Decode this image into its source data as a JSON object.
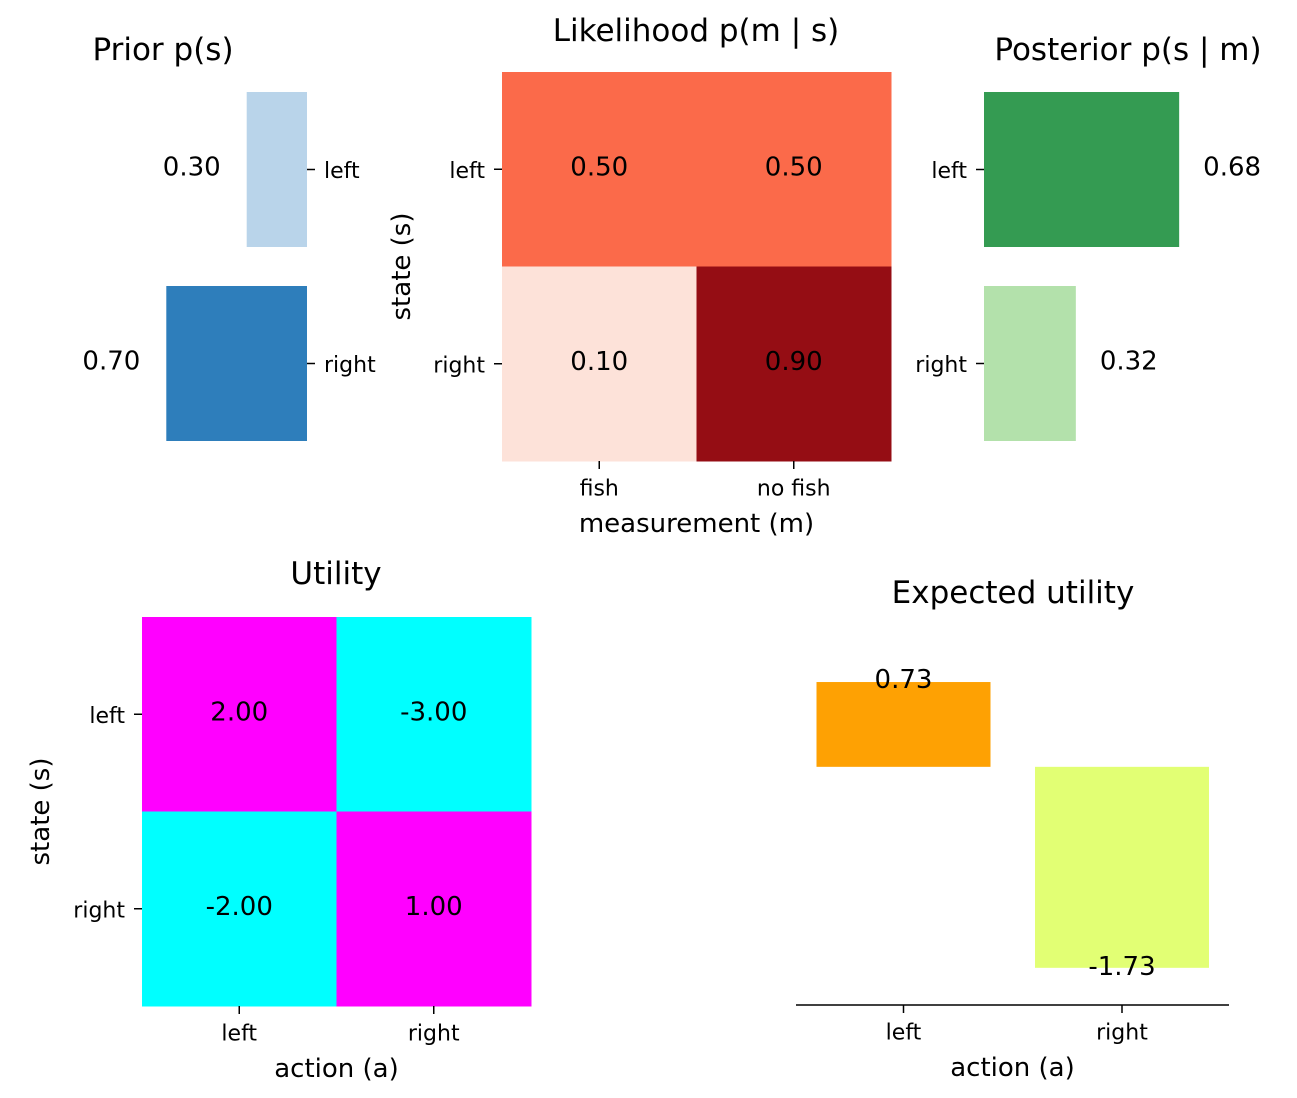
{
  "chart_data": [
    {
      "id": "prior",
      "type": "bar",
      "orientation": "horizontal",
      "title": "Prior p(s)",
      "xlabel": "",
      "ylabel": "",
      "categories": [
        "left",
        "right"
      ],
      "values": [
        0.3,
        0.7
      ],
      "value_labels": [
        "0.30",
        "0.70"
      ],
      "direction": "right-to-left",
      "xlim": [
        0,
        1
      ],
      "tick_side": "right",
      "colors": [
        "#b9d4ea",
        "#2e7ebb"
      ],
      "grid": false
    },
    {
      "id": "likelihood",
      "type": "heatmap",
      "title": "Likelihood p(m | s)",
      "xlabel": "measurement (m)",
      "ylabel": "state (s)",
      "rows": [
        "left",
        "right"
      ],
      "cols": [
        "fish",
        "no fish"
      ],
      "values": [
        [
          0.5,
          0.5
        ],
        [
          0.1,
          0.9
        ]
      ],
      "value_labels": [
        [
          "0.50",
          "0.50"
        ],
        [
          "0.10",
          "0.90"
        ]
      ],
      "colors": [
        [
          "#fb6a4a",
          "#fb6a4a"
        ],
        [
          "#fde2d9",
          "#950d14"
        ]
      ],
      "grid": false
    },
    {
      "id": "posterior",
      "type": "bar",
      "orientation": "horizontal",
      "title": "Posterior p(s | m)",
      "xlabel": "",
      "ylabel": "",
      "categories": [
        "left",
        "right"
      ],
      "values": [
        0.68,
        0.32
      ],
      "value_labels": [
        "0.68",
        "0.32"
      ],
      "direction": "left-to-right",
      "xlim": [
        0,
        1
      ],
      "tick_side": "left",
      "colors": [
        "#349b52",
        "#b3e1ab"
      ],
      "grid": false
    },
    {
      "id": "utility",
      "type": "heatmap",
      "title": "Utility",
      "xlabel": "action (a)",
      "ylabel": "state (s)",
      "rows": [
        "left",
        "right"
      ],
      "cols": [
        "left",
        "right"
      ],
      "values": [
        [
          2.0,
          -3.0
        ],
        [
          -2.0,
          1.0
        ]
      ],
      "value_labels": [
        [
          "2.00",
          "-3.00"
        ],
        [
          "-2.00",
          "1.00"
        ]
      ],
      "colors": [
        [
          "#ff00ff",
          "#00ffff"
        ],
        [
          "#00ffff",
          "#ff00ff"
        ]
      ],
      "grid": false
    },
    {
      "id": "expected",
      "type": "bar",
      "orientation": "vertical",
      "title": "Expected utility",
      "xlabel": "action (a)",
      "ylabel": "",
      "categories": [
        "left",
        "right"
      ],
      "values": [
        0.73,
        -1.73
      ],
      "value_labels": [
        "0.73",
        "-1.73"
      ],
      "ylim": [
        -2.05,
        1.35
      ],
      "colors": [
        "#fea103",
        "#e2ff74"
      ],
      "grid": false
    }
  ]
}
